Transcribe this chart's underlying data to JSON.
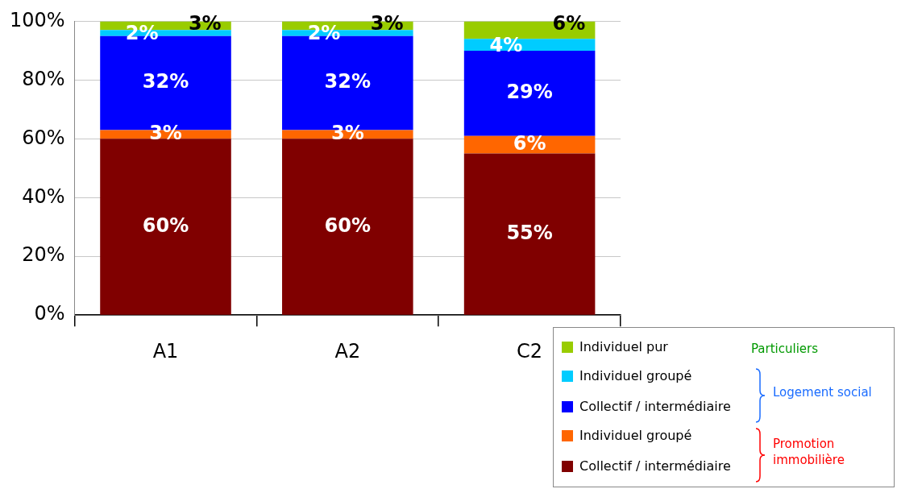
{
  "chart_data": {
    "type": "bar",
    "stacked": true,
    "categories": [
      "A1",
      "A2",
      "C2"
    ],
    "series": [
      {
        "name": "Collectif / intermédiaire",
        "color": "#800000",
        "values": [
          60,
          60,
          55
        ],
        "value_labels": [
          "60%",
          "60%",
          "55%"
        ]
      },
      {
        "name": "Individuel groupé",
        "color": "#ff6600",
        "values": [
          3,
          3,
          6
        ],
        "value_labels": [
          "3%",
          "3%",
          "6%"
        ]
      },
      {
        "name": "Collectif / intermédiaire",
        "color": "#0000ff",
        "values": [
          32,
          32,
          29
        ],
        "value_labels": [
          "32%",
          "32%",
          "29%"
        ]
      },
      {
        "name": "Individuel groupé",
        "color": "#00ccff",
        "values": [
          2,
          2,
          4
        ],
        "value_labels": [
          "2%",
          "2%",
          "4%"
        ]
      },
      {
        "name": "Individuel pur",
        "color": "#99cc00",
        "values": [
          3,
          3,
          6
        ],
        "value_labels": [
          "3%",
          "3%",
          "6%"
        ]
      }
    ],
    "ylim": [
      0,
      100
    ],
    "yticks": [
      {
        "value": 0,
        "label": "0%"
      },
      {
        "value": 20,
        "label": "20%"
      },
      {
        "value": 40,
        "label": "40%"
      },
      {
        "value": 60,
        "label": "60%"
      },
      {
        "value": 80,
        "label": "80%"
      },
      {
        "value": 100,
        "label": "100%"
      }
    ],
    "grid": "y",
    "legend": "bottom right",
    "annotations": [
      "Particuliers",
      "Logement social",
      "Promotion immobilière"
    ]
  }
}
